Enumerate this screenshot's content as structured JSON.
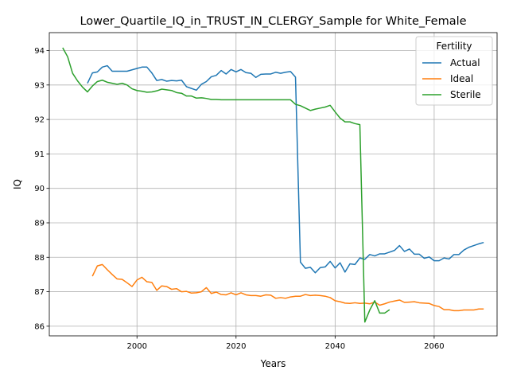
{
  "chart_data": {
    "type": "line",
    "title": "Lower_Quartile_IQ_in_TRUST_IN_CLERGY_Sample for White_Female",
    "xlabel": "Years",
    "ylabel": "IQ",
    "xlim": [
      1982.3,
      2072.7
    ],
    "ylim": [
      85.72,
      94.52
    ],
    "xticks": [
      2000,
      2020,
      2040,
      2060
    ],
    "yticks": [
      86,
      87,
      88,
      89,
      90,
      91,
      92,
      93,
      94
    ],
    "grid": true,
    "legend": {
      "title": "Fertility",
      "position": "top-right"
    },
    "series": [
      {
        "name": "Actual",
        "color": "#1f77b4",
        "x": [
          1990,
          1991,
          1992,
          1993,
          1994,
          1995,
          1996,
          1997,
          1998,
          1999,
          2000,
          2001,
          2002,
          2003,
          2004,
          2005,
          2006,
          2007,
          2008,
          2009,
          2010,
          2011,
          2012,
          2013,
          2014,
          2015,
          2016,
          2017,
          2018,
          2019,
          2020,
          2021,
          2022,
          2023,
          2024,
          2025,
          2026,
          2027,
          2028,
          2029,
          2030,
          2031,
          2032,
          2033,
          2034,
          2035,
          2036,
          2037,
          2038,
          2039,
          2040,
          2041,
          2042,
          2043,
          2044,
          2045,
          2046,
          2047,
          2048,
          2049,
          2050,
          2051,
          2052,
          2053,
          2054,
          2055,
          2056,
          2057,
          2058,
          2059,
          2060,
          2061,
          2062,
          2063,
          2064,
          2065,
          2066,
          2067,
          2068,
          2069,
          2070
        ],
        "y": [
          93.05,
          93.35,
          93.38,
          93.52,
          93.56,
          93.4,
          93.4,
          93.4,
          93.4,
          93.44,
          93.48,
          93.52,
          93.52,
          93.35,
          93.13,
          93.16,
          93.11,
          93.13,
          93.12,
          93.14,
          92.95,
          92.9,
          92.85,
          93.02,
          93.1,
          93.24,
          93.28,
          93.42,
          93.32,
          93.45,
          93.38,
          93.45,
          93.36,
          93.34,
          93.22,
          93.31,
          93.32,
          93.32,
          93.37,
          93.34,
          93.37,
          93.39,
          93.23,
          87.86,
          87.68,
          87.71,
          87.55,
          87.7,
          87.72,
          87.88,
          87.69,
          87.84,
          87.57,
          87.81,
          87.79,
          87.98,
          87.94,
          88.08,
          88.04,
          88.1,
          88.1,
          88.15,
          88.2,
          88.34,
          88.17,
          88.24,
          88.09,
          88.09,
          87.97,
          88.01,
          87.9,
          87.9,
          87.98,
          87.95,
          88.08,
          88.08,
          88.21,
          88.29,
          88.34,
          88.39,
          88.43
        ]
      },
      {
        "name": "Ideal",
        "color": "#ff7f0e",
        "x": [
          1991,
          1992,
          1993,
          1994,
          1995,
          1996,
          1997,
          1998,
          1999,
          2000,
          2001,
          2002,
          2003,
          2004,
          2005,
          2006,
          2007,
          2008,
          2009,
          2010,
          2011,
          2012,
          2013,
          2014,
          2015,
          2016,
          2017,
          2018,
          2019,
          2020,
          2021,
          2022,
          2023,
          2024,
          2025,
          2026,
          2027,
          2028,
          2029,
          2030,
          2031,
          2032,
          2033,
          2034,
          2035,
          2036,
          2037,
          2038,
          2039,
          2040,
          2041,
          2042,
          2043,
          2044,
          2045,
          2046,
          2047,
          2048,
          2049,
          2050,
          2051,
          2052,
          2053,
          2054,
          2055,
          2056,
          2057,
          2058,
          2059,
          2060,
          2061,
          2062,
          2063,
          2064,
          2065,
          2066,
          2067,
          2068,
          2069,
          2070
        ],
        "y": [
          87.45,
          87.75,
          87.79,
          87.64,
          87.5,
          87.37,
          87.36,
          87.26,
          87.15,
          87.34,
          87.42,
          87.29,
          87.27,
          87.04,
          87.17,
          87.15,
          87.07,
          87.09,
          87.0,
          87.01,
          86.96,
          86.97,
          87.0,
          87.12,
          86.95,
          86.99,
          86.92,
          86.91,
          86.97,
          86.91,
          86.97,
          86.91,
          86.89,
          86.89,
          86.87,
          86.91,
          86.9,
          86.81,
          86.83,
          86.81,
          86.85,
          86.87,
          86.87,
          86.92,
          86.89,
          86.9,
          86.89,
          86.87,
          86.83,
          86.74,
          86.71,
          86.67,
          86.66,
          86.68,
          86.66,
          86.67,
          86.65,
          86.7,
          86.61,
          86.65,
          86.7,
          86.73,
          86.76,
          86.69,
          86.7,
          86.71,
          86.68,
          86.67,
          86.66,
          86.6,
          86.57,
          86.48,
          86.48,
          86.45,
          86.45,
          86.47,
          86.47,
          86.47,
          86.5,
          86.5
        ]
      },
      {
        "name": "Sterile",
        "color": "#2ca02c",
        "x": [
          1985,
          1986,
          1987,
          1988,
          1989,
          1990,
          1991,
          1992,
          1993,
          1994,
          1995,
          1996,
          1997,
          1998,
          1999,
          2000,
          2001,
          2002,
          2003,
          2004,
          2005,
          2006,
          2007,
          2008,
          2009,
          2010,
          2011,
          2012,
          2013,
          2014,
          2015,
          2016,
          2017,
          2018,
          2019,
          2020,
          2021,
          2022,
          2023,
          2024,
          2025,
          2026,
          2027,
          2028,
          2029,
          2030,
          2031,
          2032,
          2033,
          2034,
          2035,
          2036,
          2037,
          2038,
          2039,
          2040,
          2041,
          2042,
          2043,
          2044,
          2045,
          2046,
          2047,
          2048,
          2049,
          2050,
          2051
        ],
        "y": [
          94.08,
          93.82,
          93.34,
          93.12,
          92.94,
          92.8,
          92.97,
          93.1,
          93.14,
          93.08,
          93.05,
          93.02,
          93.05,
          93.0,
          92.89,
          92.84,
          92.82,
          92.79,
          92.8,
          92.83,
          92.88,
          92.86,
          92.84,
          92.78,
          92.76,
          92.68,
          92.68,
          92.62,
          92.63,
          92.61,
          92.58,
          92.58,
          92.57,
          92.57,
          92.57,
          92.57,
          92.57,
          92.57,
          92.57,
          92.57,
          92.57,
          92.57,
          92.57,
          92.57,
          92.57,
          92.57,
          92.57,
          92.44,
          92.4,
          92.33,
          92.26,
          92.3,
          92.33,
          92.36,
          92.41,
          92.22,
          92.04,
          91.93,
          91.93,
          91.88,
          91.85,
          86.12,
          86.47,
          86.74,
          86.38,
          86.38,
          86.48
        ]
      }
    ]
  }
}
